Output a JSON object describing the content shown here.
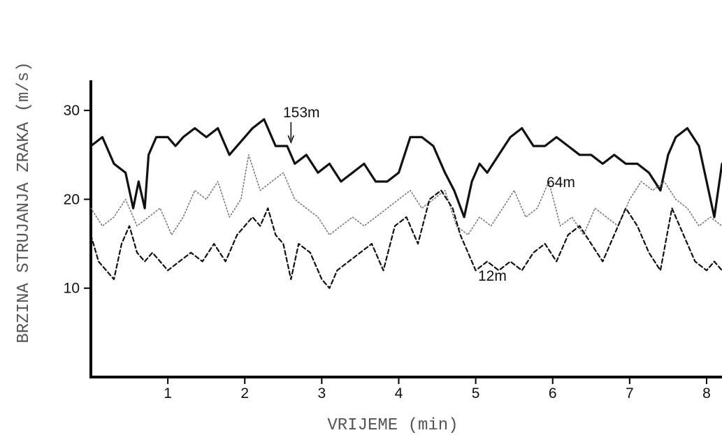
{
  "chart_data": {
    "type": "line",
    "title": "",
    "xlabel": "VRIJEME (min)",
    "ylabel": "BRZINA STRUJANJA ZRAKA (m/s)",
    "xlim": [
      0,
      8.2
    ],
    "ylim": [
      0,
      33
    ],
    "x_ticks": [
      1,
      2,
      3,
      4,
      5,
      6,
      7,
      8
    ],
    "x_tick_labels": [
      "1",
      "2",
      "3",
      "4",
      "5",
      "6",
      "7",
      "8"
    ],
    "y_ticks": [
      10,
      20,
      30
    ],
    "y_tick_labels": [
      "10",
      "20",
      "30"
    ],
    "grid": false,
    "legend": "none",
    "series": [
      {
        "name": "153m",
        "style": "solid",
        "color": "#111111",
        "x": [
          0.0,
          0.15,
          0.3,
          0.45,
          0.55,
          0.62,
          0.7,
          0.75,
          0.85,
          1.0,
          1.1,
          1.2,
          1.35,
          1.5,
          1.65,
          1.8,
          1.9,
          2.0,
          2.1,
          2.25,
          2.4,
          2.55,
          2.65,
          2.8,
          2.95,
          3.1,
          3.25,
          3.4,
          3.55,
          3.7,
          3.85,
          4.0,
          4.15,
          4.3,
          4.45,
          4.6,
          4.72,
          4.85,
          4.95,
          5.05,
          5.15,
          5.3,
          5.45,
          5.6,
          5.75,
          5.9,
          6.05,
          6.2,
          6.35,
          6.5,
          6.65,
          6.8,
          6.95,
          7.1,
          7.25,
          7.4,
          7.5,
          7.6,
          7.75,
          7.9,
          8.0,
          8.1,
          8.2
        ],
        "y": [
          26,
          27,
          24,
          23,
          19,
          22,
          19,
          25,
          27,
          27,
          26,
          27,
          28,
          27,
          28,
          25,
          26,
          27,
          28,
          29,
          26,
          26,
          24,
          25,
          23,
          24,
          22,
          23,
          24,
          22,
          22,
          23,
          27,
          27,
          26,
          23,
          21,
          18,
          22,
          24,
          23,
          25,
          27,
          28,
          26,
          26,
          27,
          26,
          25,
          25,
          24,
          25,
          24,
          24,
          23,
          21,
          25,
          27,
          28,
          26,
          22,
          18,
          24
        ]
      },
      {
        "name": "64m",
        "style": "dotted",
        "color": "#777777",
        "x": [
          0.0,
          0.15,
          0.3,
          0.45,
          0.6,
          0.75,
          0.9,
          1.05,
          1.2,
          1.35,
          1.5,
          1.65,
          1.8,
          1.95,
          2.05,
          2.2,
          2.35,
          2.5,
          2.65,
          2.8,
          2.95,
          3.1,
          3.25,
          3.4,
          3.55,
          3.7,
          3.85,
          4.0,
          4.15,
          4.3,
          4.45,
          4.6,
          4.75,
          4.9,
          5.05,
          5.2,
          5.35,
          5.5,
          5.65,
          5.8,
          5.95,
          6.1,
          6.25,
          6.4,
          6.55,
          6.7,
          6.85,
          7.0,
          7.15,
          7.3,
          7.45,
          7.6,
          7.75,
          7.9,
          8.05,
          8.2
        ],
        "y": [
          19,
          17,
          18,
          20,
          17,
          18,
          19,
          16,
          18,
          21,
          20,
          22,
          18,
          20,
          25,
          21,
          22,
          23,
          20,
          19,
          18,
          16,
          17,
          18,
          17,
          18,
          19,
          20,
          21,
          19,
          20,
          21,
          17,
          16,
          18,
          17,
          19,
          21,
          18,
          19,
          22,
          17,
          18,
          16,
          19,
          18,
          17,
          20,
          22,
          21,
          22,
          20,
          19,
          17,
          18,
          17
        ]
      },
      {
        "name": "12m",
        "style": "dashed",
        "color": "#111111",
        "x": [
          0.0,
          0.1,
          0.2,
          0.3,
          0.4,
          0.5,
          0.6,
          0.7,
          0.8,
          0.9,
          1.0,
          1.15,
          1.3,
          1.45,
          1.6,
          1.75,
          1.9,
          2.0,
          2.1,
          2.2,
          2.3,
          2.4,
          2.5,
          2.6,
          2.7,
          2.85,
          3.0,
          3.1,
          3.2,
          3.35,
          3.5,
          3.65,
          3.8,
          3.95,
          4.1,
          4.25,
          4.4,
          4.55,
          4.7,
          4.8,
          4.9,
          5.0,
          5.15,
          5.3,
          5.45,
          5.6,
          5.75,
          5.9,
          6.05,
          6.2,
          6.35,
          6.5,
          6.65,
          6.8,
          6.95,
          7.1,
          7.25,
          7.4,
          7.55,
          7.7,
          7.85,
          8.0,
          8.1,
          8.2
        ],
        "y": [
          16,
          13,
          12,
          11,
          15,
          17,
          14,
          13,
          14,
          13,
          12,
          13,
          14,
          13,
          15,
          13,
          16,
          17,
          18,
          17,
          19,
          16,
          15,
          11,
          15,
          14,
          11,
          10,
          12,
          13,
          14,
          15,
          12,
          17,
          18,
          15,
          20,
          21,
          19,
          16,
          14,
          12,
          13,
          12,
          13,
          12,
          14,
          15,
          13,
          16,
          17,
          15,
          13,
          16,
          19,
          17,
          14,
          12,
          19,
          16,
          13,
          12,
          13,
          12
        ]
      }
    ],
    "annotations": [
      {
        "text": "153m",
        "target": "153m",
        "arrow_at_x": 2.6
      },
      {
        "text": "64m",
        "target": "64m"
      },
      {
        "text": "12m",
        "target": "12m"
      }
    ]
  }
}
